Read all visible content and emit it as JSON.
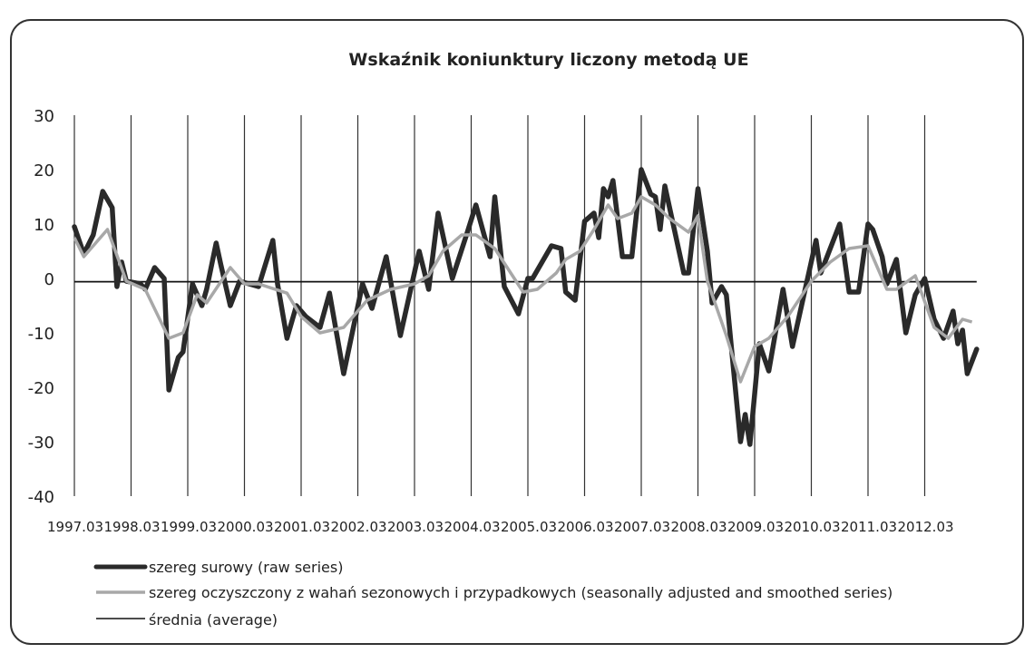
{
  "chart_data": {
    "type": "line",
    "title": "Wskaźnik koniunktury liczony metodą UE",
    "xlabel": "",
    "ylabel": "",
    "ylim": [
      -40,
      30
    ],
    "yticks": [
      "30",
      "20",
      "10",
      "0",
      "-10",
      "-20",
      "-30",
      "-40"
    ],
    "xticks": [
      "1997.03",
      "1998.03",
      "1999.03",
      "2000.03",
      "2001.03",
      "2002.03",
      "2003.03",
      "2004.03",
      "2005.03",
      "2006.03",
      "2007.03",
      "2008.03",
      "2009.03",
      "2010.03",
      "2011.03",
      "2012.03"
    ],
    "grid": "vertical lines at each year tick",
    "legend_position": "bottom-left",
    "colors": {
      "raw": "#2a2a2a",
      "smoothed": "#a8a8a8",
      "average": "#111111"
    },
    "series": [
      {
        "name": "szereg surowy (raw series)",
        "points": [
          [
            "1997.03",
            9.5
          ],
          [
            "1997.05",
            4.5
          ],
          [
            "1997.07",
            8
          ],
          [
            "1997.09",
            16
          ],
          [
            "1997.11",
            13
          ],
          [
            "1997.12",
            -1.5
          ],
          [
            "1998.01",
            3
          ],
          [
            "1998.02",
            -0.5
          ],
          [
            "1998.05",
            -1
          ],
          [
            "1998.06",
            -2
          ],
          [
            "1998.08",
            2
          ],
          [
            "1998.10",
            0
          ],
          [
            "1998.11",
            -20.5
          ],
          [
            "1999.01",
            -14.5
          ],
          [
            "1999.02",
            -13.5
          ],
          [
            "1999.04",
            -1
          ],
          [
            "1999.06",
            -5
          ],
          [
            "1999.07",
            -2
          ],
          [
            "1999.09",
            6.5
          ],
          [
            "1999.10",
            2.5
          ],
          [
            "1999.12",
            -5
          ],
          [
            "2000.02",
            -0.5
          ],
          [
            "2000.06",
            -1.5
          ],
          [
            "2000.09",
            7
          ],
          [
            "2000.10",
            -1
          ],
          [
            "2000.12",
            -11
          ],
          [
            "2001.02",
            -5
          ],
          [
            "2001.04",
            -7
          ],
          [
            "2001.07",
            -9
          ],
          [
            "2001.09",
            -2.7
          ],
          [
            "2001.12",
            -17.5
          ],
          [
            "2002.04",
            -1
          ],
          [
            "2002.06",
            -5.5
          ],
          [
            "2002.09",
            4
          ],
          [
            "2002.12",
            -10.5
          ],
          [
            "2003.04",
            5
          ],
          [
            "2003.06",
            -2
          ],
          [
            "2003.08",
            12
          ],
          [
            "2003.11",
            0
          ],
          [
            "2004.02",
            8
          ],
          [
            "2004.04",
            13.5
          ],
          [
            "2004.07",
            4
          ],
          [
            "2004.08",
            15
          ],
          [
            "2004.10",
            -1.5
          ],
          [
            "2005.01",
            -6.5
          ],
          [
            "2005.03",
            0
          ],
          [
            "2005.04",
            0
          ],
          [
            "2005.08",
            6
          ],
          [
            "2005.10",
            5.5
          ],
          [
            "2005.11",
            -2.5
          ],
          [
            "2006.01",
            -4
          ],
          [
            "2006.03",
            10.5
          ],
          [
            "2006.05",
            12
          ],
          [
            "2006.06",
            7.5
          ],
          [
            "2006.07",
            16.5
          ],
          [
            "2006.08",
            15
          ],
          [
            "2006.09",
            18
          ],
          [
            "2006.11",
            4
          ],
          [
            "2007.01",
            4
          ],
          [
            "2007.03",
            20
          ],
          [
            "2007.05",
            15.5
          ],
          [
            "2007.06",
            15
          ],
          [
            "2007.07",
            9
          ],
          [
            "2007.08",
            17
          ],
          [
            "2007.12",
            1
          ],
          [
            "2008.01",
            1
          ],
          [
            "2008.03",
            16.5
          ],
          [
            "2008.05",
            5
          ],
          [
            "2008.06",
            -4.5
          ],
          [
            "2008.08",
            -1.5
          ],
          [
            "2008.09",
            -3
          ],
          [
            "2008.12",
            -30
          ],
          [
            "2009.01",
            -25
          ],
          [
            "2009.02",
            -30.5
          ],
          [
            "2009.04",
            -12
          ],
          [
            "2009.06",
            -17
          ],
          [
            "2009.09",
            -2
          ],
          [
            "2009.11",
            -12.5
          ],
          [
            "2010.04",
            7
          ],
          [
            "2010.05",
            1
          ],
          [
            "2010.09",
            10
          ],
          [
            "2010.11",
            -2.5
          ],
          [
            "2011.01",
            -2.5
          ],
          [
            "2011.03",
            10
          ],
          [
            "2011.04",
            9
          ],
          [
            "2011.06",
            4
          ],
          [
            "2011.07",
            -1
          ],
          [
            "2011.09",
            3.5
          ],
          [
            "2011.11",
            -10
          ],
          [
            "2012.01",
            -3
          ],
          [
            "2012.03",
            0
          ],
          [
            "2012.05",
            -7.5
          ],
          [
            "2012.07",
            -11
          ],
          [
            "2012.09",
            -6
          ],
          [
            "2012.10",
            -12
          ],
          [
            "2012.11",
            -9.5
          ],
          [
            "2012.12",
            -17.5
          ],
          [
            "2013.02",
            -13
          ]
        ]
      },
      {
        "name": "szereg oczyszczony z wahań sezonowych i przypadkowych (seasonally adjusted and smoothed series)",
        "points": [
          [
            "1997.03",
            7.5
          ],
          [
            "1997.05",
            4
          ],
          [
            "1997.10",
            9
          ],
          [
            "1998.02",
            -0.5
          ],
          [
            "1998.06",
            -2
          ],
          [
            "1998.11",
            -11
          ],
          [
            "1999.02",
            -10
          ],
          [
            "1999.05",
            -3
          ],
          [
            "1999.07",
            -4.5
          ],
          [
            "1999.12",
            2
          ],
          [
            "2000.03",
            -1
          ],
          [
            "2000.06",
            -1
          ],
          [
            "2000.12",
            -2.7
          ],
          [
            "2001.03",
            -7
          ],
          [
            "2001.07",
            -10
          ],
          [
            "2001.12",
            -9
          ],
          [
            "2002.05",
            -4
          ],
          [
            "2002.10",
            -2
          ],
          [
            "2003.03",
            -1
          ],
          [
            "2003.06",
            0.5
          ],
          [
            "2003.09",
            5
          ],
          [
            "2004.01",
            8
          ],
          [
            "2004.04",
            8
          ],
          [
            "2004.08",
            5.5
          ],
          [
            "2005.02",
            -2.5
          ],
          [
            "2005.05",
            -2
          ],
          [
            "2005.09",
            1
          ],
          [
            "2005.11",
            3.5
          ],
          [
            "2006.02",
            5
          ],
          [
            "2006.05",
            9
          ],
          [
            "2006.08",
            13.5
          ],
          [
            "2006.10",
            11
          ],
          [
            "2007.01",
            12
          ],
          [
            "2007.03",
            15
          ],
          [
            "2007.06",
            13.5
          ],
          [
            "2007.09",
            11
          ],
          [
            "2008.01",
            8.5
          ],
          [
            "2008.03",
            11.5
          ],
          [
            "2008.05",
            -0.5
          ],
          [
            "2008.09",
            -10.5
          ],
          [
            "2008.12",
            -19
          ],
          [
            "2009.03",
            -12.5
          ],
          [
            "2009.06",
            -11
          ],
          [
            "2009.10",
            -7
          ],
          [
            "2010.03",
            -0.5
          ],
          [
            "2010.07",
            3
          ],
          [
            "2010.11",
            5.5
          ],
          [
            "2011.03",
            6
          ],
          [
            "2011.07",
            -2
          ],
          [
            "2011.09",
            -2
          ],
          [
            "2012.01",
            0.5
          ],
          [
            "2012.05",
            -9
          ],
          [
            "2012.08",
            -11
          ],
          [
            "2012.11",
            -7.5
          ],
          [
            "2013.01",
            -8
          ]
        ]
      },
      {
        "name": "średnia (average)",
        "value": -0.6,
        "from": "1997.03",
        "to": "2013.02"
      }
    ]
  }
}
